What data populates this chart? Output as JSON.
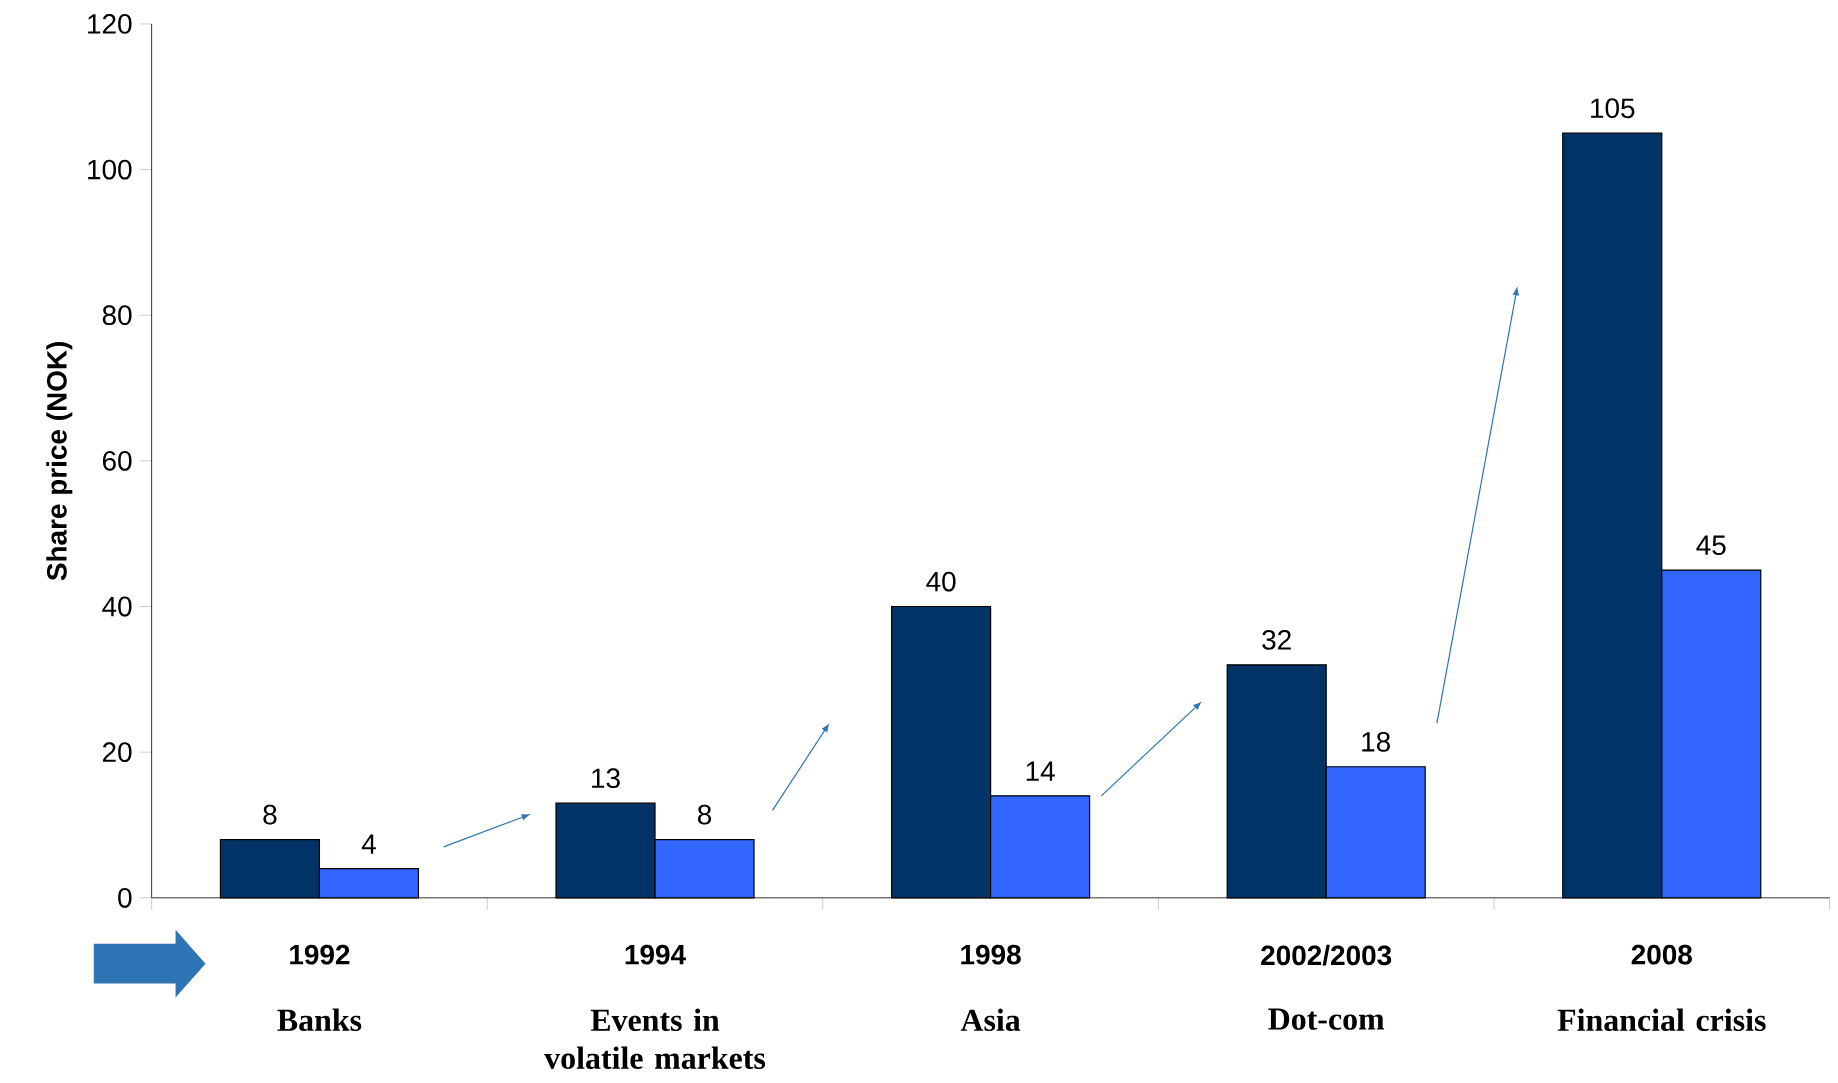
{
  "chart_data": {
    "type": "bar",
    "ylabel": "Share price (NOK)",
    "categories": [
      "1992",
      "1994",
      "1998",
      "2002/2003",
      "2008"
    ],
    "series": [
      {
        "color": "#003366",
        "values": [
          8,
          13,
          40,
          32,
          105
        ]
      },
      {
        "color": "#3366ff",
        "values": [
          4,
          8,
          14,
          18,
          45
        ]
      }
    ],
    "ylim": [
      0,
      120
    ],
    "yticks": [
      0,
      20,
      40,
      60,
      80,
      100,
      120
    ],
    "data_labels": true,
    "grid": false,
    "annotations": [
      "Banks",
      "Events in volatile markets",
      "Asia",
      "Dot-com",
      "Financial crisis"
    ]
  }
}
